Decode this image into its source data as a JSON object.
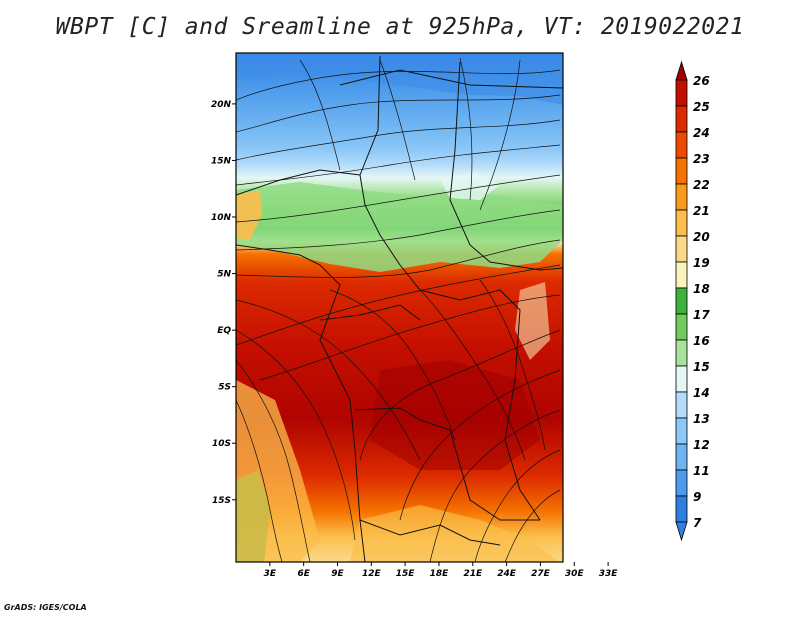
{
  "title": "WBPT [C] and Sreamline at 925hPa, VT: 2019022021",
  "credit": "GrADS: IGES/COLA",
  "map": {
    "lat_range": [
      -20.5,
      24.5
    ],
    "lon_range": [
      0,
      29
    ],
    "lat_ticks": [
      {
        "value": 20,
        "label": "20N"
      },
      {
        "value": 15,
        "label": "15N"
      },
      {
        "value": 10,
        "label": "10N"
      },
      {
        "value": 5,
        "label": "5N"
      },
      {
        "value": 0,
        "label": "EQ"
      },
      {
        "value": -5,
        "label": "5S"
      },
      {
        "value": -10,
        "label": "10S"
      },
      {
        "value": -15,
        "label": "15S"
      }
    ],
    "lon_ticks": [
      {
        "value": 3,
        "label": "3E"
      },
      {
        "value": 6,
        "label": "6E"
      },
      {
        "value": 9,
        "label": "9E"
      },
      {
        "value": 12,
        "label": "12E"
      },
      {
        "value": 15,
        "label": "15E"
      },
      {
        "value": 18,
        "label": "18E"
      },
      {
        "value": 21,
        "label": "21E"
      },
      {
        "value": 24,
        "label": "24E"
      },
      {
        "value": 27,
        "label": "27E"
      },
      {
        "value": 30,
        "label": "30E"
      },
      {
        "value": 33,
        "label": "33E"
      }
    ]
  },
  "colorbar": {
    "levels": [
      {
        "label": "26",
        "color": "#a50000"
      },
      {
        "label": "25",
        "color": "#c40f00"
      },
      {
        "label": "24",
        "color": "#dc2a00"
      },
      {
        "label": "23",
        "color": "#ec4a00"
      },
      {
        "label": "22",
        "color": "#f57200"
      },
      {
        "label": "21",
        "color": "#fb9b1c"
      },
      {
        "label": "20",
        "color": "#fbbe4c"
      },
      {
        "label": "19",
        "color": "#fcd98a"
      },
      {
        "label": "18",
        "color": "#fbf3bc"
      },
      {
        "label": "17",
        "color": "#3cb43c"
      },
      {
        "label": "16",
        "color": "#70cc5c"
      },
      {
        "label": "15",
        "color": "#a8e39c"
      },
      {
        "label": "14",
        "color": "#e4f7f4"
      },
      {
        "label": "13",
        "color": "#b4dcfa"
      },
      {
        "label": "12",
        "color": "#8cc8f8"
      },
      {
        "label": "11",
        "color": "#6eb4f2"
      },
      {
        "label": "9",
        "color": "#4d9bec"
      },
      {
        "label": "7",
        "color": "#2e7fe2"
      }
    ],
    "top_color": "#a50000",
    "bottom_color": "#2e7fe2"
  }
}
